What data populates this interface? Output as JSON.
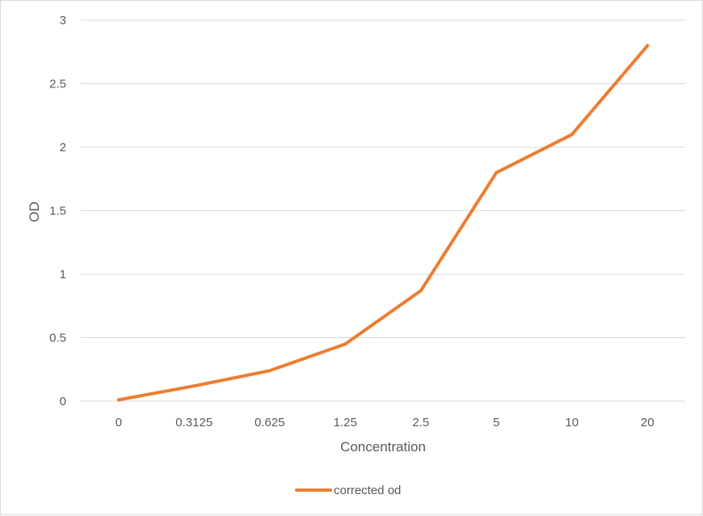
{
  "chart_data": {
    "type": "line",
    "categories": [
      "0",
      "0.3125",
      "0.625",
      "1.25",
      "2.5",
      "5",
      "10",
      "20"
    ],
    "series": [
      {
        "name": "corrected od",
        "values": [
          0.01,
          0.12,
          0.24,
          0.45,
          0.87,
          1.8,
          2.1,
          2.8
        ],
        "color": "#ED7D31"
      }
    ],
    "xlabel": "Concentration",
    "ylabel": "OD",
    "ylim": [
      0,
      3
    ],
    "yticks": [
      "0",
      "0.5",
      "1",
      "1.5",
      "2",
      "2.5",
      "3"
    ],
    "grid": true,
    "legend_position": "bottom"
  }
}
